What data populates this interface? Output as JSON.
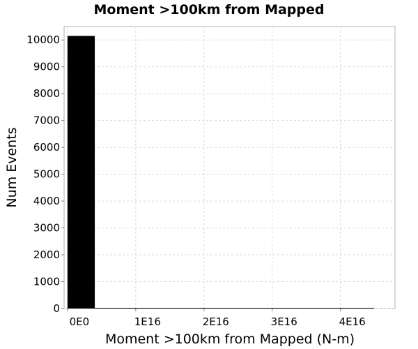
{
  "chart_data": {
    "type": "bar",
    "title": "Moment >100km from Mapped",
    "xlabel": "Moment >100km from Mapped (N-m)",
    "ylabel": "Num Events",
    "x_ticks": [
      {
        "value": 0,
        "label": "0E0"
      },
      {
        "value": 1e+16,
        "label": "1E16"
      },
      {
        "value": 2e+16,
        "label": "2E16"
      },
      {
        "value": 3e+16,
        "label": "3E16"
      },
      {
        "value": 4e+16,
        "label": "4E16"
      }
    ],
    "y_ticks": [
      0,
      1000,
      2000,
      3000,
      4000,
      5000,
      6000,
      7000,
      8000,
      9000,
      10000
    ],
    "xlim": [
      -500000000000000.0,
      4.8e+16
    ],
    "ylim": [
      0,
      10500
    ],
    "bin_width": 4000000000000000.0,
    "bins": [
      {
        "x_start": 0,
        "x_end": 4000000000000000.0,
        "count": 10150
      }
    ],
    "grid": true,
    "bar_color": "#000000"
  }
}
